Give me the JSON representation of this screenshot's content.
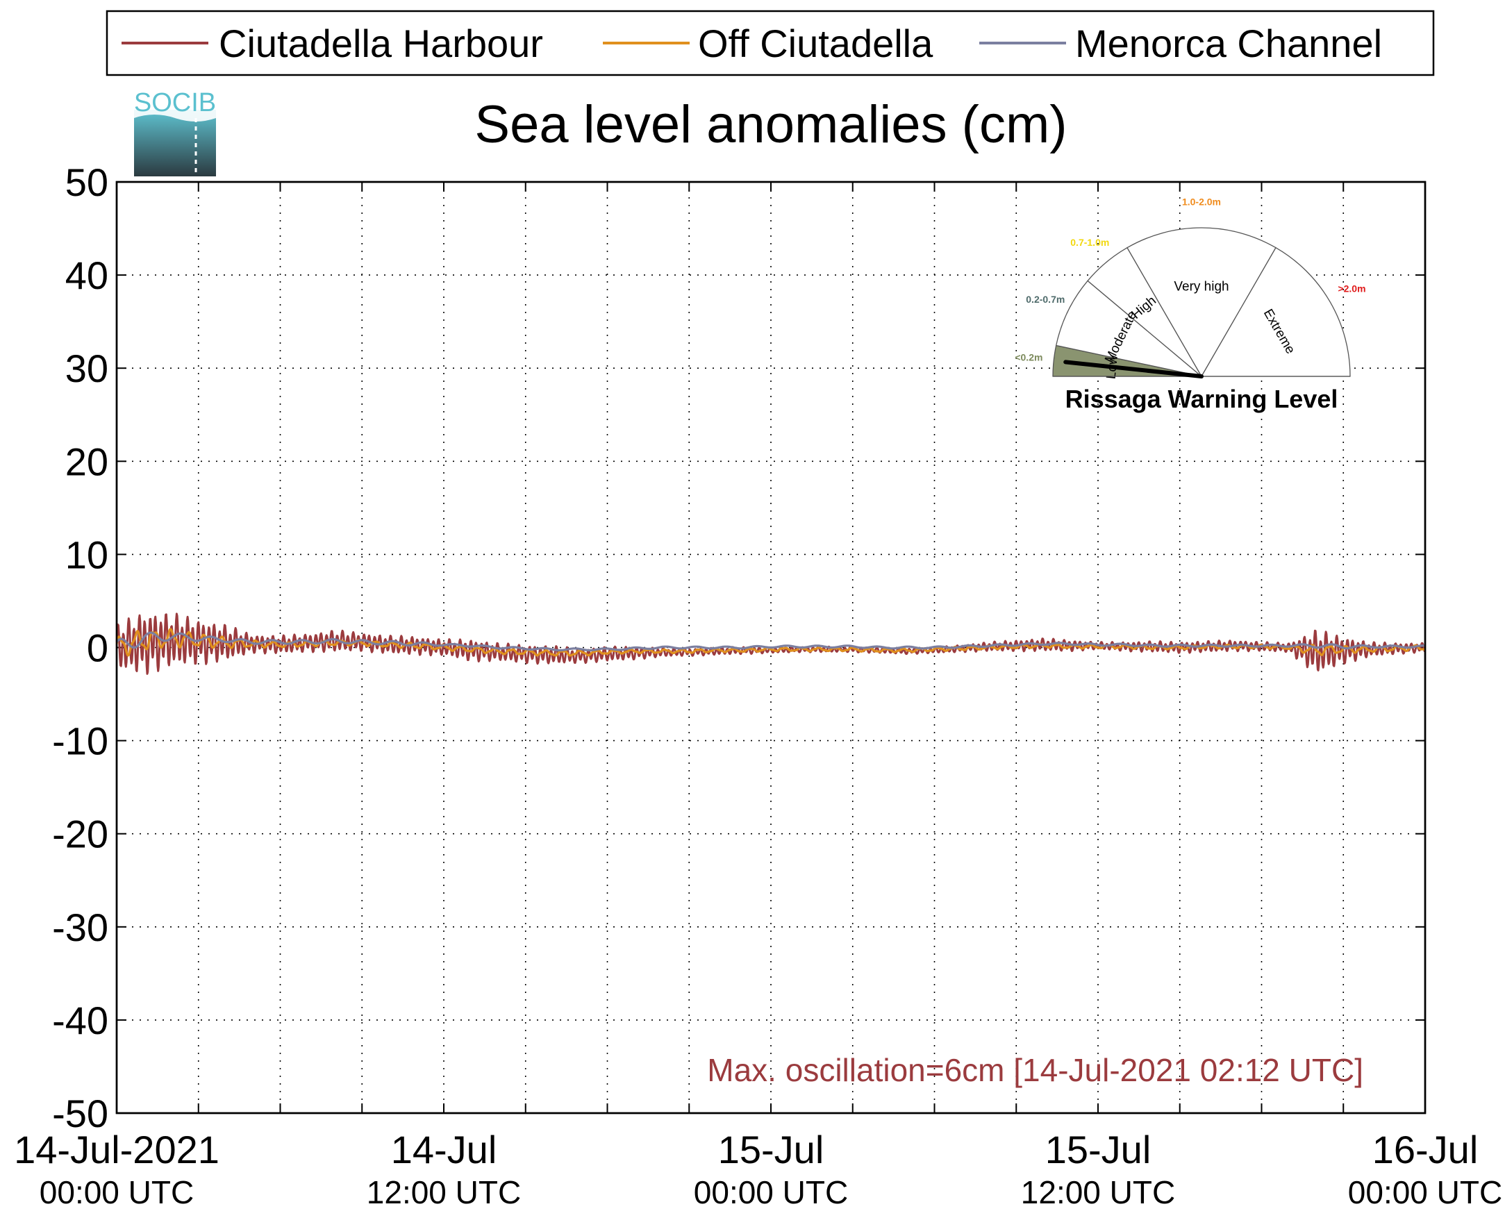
{
  "logo": {
    "text": "SOCIB",
    "color": "#5bc0cf"
  },
  "chart_data": {
    "type": "line",
    "title": "Sea level anomalies (cm)",
    "xlabel": "",
    "ylabel": "",
    "ylim": [
      -50,
      50
    ],
    "yticks": [
      50,
      40,
      30,
      20,
      10,
      0,
      -10,
      -20,
      -30,
      -40,
      -50
    ],
    "xlim_hours": [
      0,
      48
    ],
    "xticks": [
      {
        "hour": 0,
        "date": "14-Jul-2021",
        "time": "00:00 UTC"
      },
      {
        "hour": 12,
        "date": "14-Jul",
        "time": "12:00 UTC"
      },
      {
        "hour": 24,
        "date": "15-Jul",
        "time": "00:00 UTC"
      },
      {
        "hour": 36,
        "date": "15-Jul",
        "time": "12:00 UTC"
      },
      {
        "hour": 48,
        "date": "16-Jul",
        "time": "00:00 UTC"
      }
    ],
    "grid": true,
    "legend_position": "top",
    "series": [
      {
        "name": "Ciutadella Harbour",
        "color": "#9b3b3e",
        "hours": [
          0,
          1,
          2,
          3,
          4,
          5,
          6,
          7,
          8,
          9,
          10,
          11,
          12,
          13,
          14,
          15,
          16,
          17,
          18,
          19,
          20,
          21,
          22,
          23,
          24,
          25,
          26,
          27,
          28,
          29,
          30,
          31,
          32,
          33,
          34,
          35,
          36,
          37,
          38,
          39,
          40,
          41,
          42,
          43,
          44,
          45,
          46,
          47,
          48
        ],
        "envelope_cm": [
          2.5,
          3.5,
          3,
          2.5,
          2,
          1,
          1,
          1,
          1.2,
          1,
          1,
          1,
          0.9,
          1.2,
          1,
          1,
          1,
          0.8,
          0.8,
          0.7,
          0.5,
          0.4,
          0.4,
          0.4,
          0.3,
          0.3,
          0.3,
          0.3,
          0.3,
          0.3,
          0.3,
          0.4,
          0.5,
          0.6,
          0.7,
          0.6,
          0.4,
          0.5,
          0.6,
          0.6,
          0.6,
          0.6,
          0.5,
          0.5,
          2.5,
          1.5,
          0.8,
          0.6,
          0.5
        ],
        "mean_cm": [
          0,
          0.5,
          0.8,
          0.6,
          0.5,
          0.4,
          0.3,
          0.5,
          0.7,
          0.6,
          0.3,
          0.2,
          0,
          -0.3,
          -0.5,
          -0.7,
          -0.8,
          -0.9,
          -0.7,
          -0.6,
          -0.5,
          -0.5,
          -0.4,
          -0.3,
          -0.3,
          -0.2,
          -0.2,
          -0.2,
          -0.3,
          -0.4,
          -0.3,
          -0.1,
          0.1,
          0.2,
          0.3,
          0.2,
          0.2,
          0.1,
          0.1,
          0,
          0.1,
          0.2,
          0.1,
          0,
          -0.5,
          -0.3,
          -0.2,
          -0.1,
          0
        ]
      },
      {
        "name": "Off Ciutadella",
        "color": "#e0901e",
        "hours": [
          0,
          1,
          2,
          3,
          4,
          5,
          6,
          7,
          8,
          9,
          10,
          11,
          12,
          13,
          14,
          15,
          16,
          17,
          18,
          19,
          20,
          21,
          22,
          23,
          24,
          25,
          26,
          27,
          28,
          29,
          30,
          31,
          32,
          33,
          34,
          35,
          36,
          37,
          38,
          39,
          40,
          41,
          42,
          43,
          44,
          45,
          46,
          47,
          48
        ],
        "envelope_cm": [
          1.2,
          1.2,
          1,
          0.8,
          0.6,
          0.4,
          0.3,
          0.3,
          0.3,
          0.3,
          0.3,
          0.3,
          0.3,
          0.3,
          0.3,
          0.3,
          0.3,
          0.3,
          0.2,
          0.2,
          0.2,
          0.2,
          0.2,
          0.2,
          0.2,
          0.2,
          0.2,
          0.2,
          0.2,
          0.2,
          0.2,
          0.2,
          0.2,
          0.2,
          0.2,
          0.2,
          0.2,
          0.2,
          0.2,
          0.2,
          0.2,
          0.2,
          0.2,
          0.2,
          0.6,
          0.4,
          0.3,
          0.3,
          0.3
        ],
        "mean_cm": [
          0,
          0.8,
          1,
          0.8,
          0.5,
          0.4,
          0.3,
          0.4,
          0.5,
          0.5,
          0.3,
          0.2,
          0,
          -0.2,
          -0.4,
          -0.5,
          -0.6,
          -0.6,
          -0.5,
          -0.4,
          -0.4,
          -0.4,
          -0.3,
          -0.3,
          -0.2,
          -0.2,
          -0.2,
          -0.2,
          -0.3,
          -0.3,
          -0.2,
          -0.1,
          0,
          0.1,
          0.2,
          0.1,
          0.1,
          0.1,
          0,
          0,
          0.1,
          0.1,
          0.1,
          0,
          -0.3,
          -0.2,
          -0.2,
          -0.1,
          0
        ]
      },
      {
        "name": "Menorca Channel",
        "color": "#7b7fa0",
        "hours": [
          0,
          1,
          2,
          3,
          4,
          5,
          6,
          7,
          8,
          9,
          10,
          11,
          12,
          13,
          14,
          15,
          16,
          17,
          18,
          19,
          20,
          21,
          22,
          23,
          24,
          25,
          26,
          27,
          28,
          29,
          30,
          31,
          32,
          33,
          34,
          35,
          36,
          37,
          38,
          39,
          40,
          41,
          42,
          43,
          44,
          45,
          46,
          47,
          48
        ],
        "envelope_cm": [
          0.8,
          0.6,
          0.4,
          0.3,
          0.2,
          0.2,
          0.2,
          0.2,
          0.2,
          0.2,
          0.2,
          0.2,
          0.1,
          0.1,
          0.1,
          0.1,
          0.1,
          0.1,
          0.1,
          0.1,
          0.1,
          0.1,
          0.1,
          0.1,
          0.1,
          0.1,
          0.1,
          0.1,
          0.1,
          0.1,
          0.1,
          0.1,
          0.1,
          0.1,
          0.1,
          0.1,
          0.1,
          0.1,
          0.1,
          0.1,
          0.1,
          0.1,
          0.1,
          0.1,
          0.2,
          0.2,
          0.1,
          0.1,
          0.1
        ],
        "mean_cm": [
          0,
          1,
          1.2,
          1,
          0.8,
          0.6,
          0.6,
          0.6,
          0.7,
          0.6,
          0.5,
          0.4,
          0.3,
          0.2,
          0,
          -0.1,
          -0.2,
          -0.2,
          -0.2,
          -0.1,
          0,
          0,
          0,
          0,
          0.1,
          0.1,
          0.1,
          0.1,
          0,
          0,
          0,
          0.1,
          0.2,
          0.3,
          0.4,
          0.4,
          0.3,
          0.3,
          0.2,
          0.2,
          0.2,
          0.2,
          0.2,
          0.2,
          0.2,
          0.1,
          0.1,
          0.1,
          0.1
        ]
      }
    ],
    "annotation": {
      "text": "Max. oscillation=6cm [14-Jul-2021 02:12 UTC]",
      "color": "#9b3b3e"
    }
  },
  "gauge": {
    "title": "Rissaga Warning Level",
    "current_level": "Low",
    "segments": [
      {
        "label": "Low",
        "range": "<0.2m",
        "range_color": "#7c8a5c",
        "fill": "#8a9470",
        "start_deg": 180,
        "end_deg": 168
      },
      {
        "label": "Moderate",
        "range": "0.2-0.7m",
        "range_color": "#4f6b6b",
        "fill": "#ffffff",
        "start_deg": 168,
        "end_deg": 140
      },
      {
        "label": "High",
        "range": "0.7-1.0m",
        "range_color": "#f2d80e",
        "fill": "#ffffff",
        "start_deg": 140,
        "end_deg": 120
      },
      {
        "label": "Very high",
        "range": "1.0-2.0m",
        "range_color": "#f08c1e",
        "fill": "#ffffff",
        "start_deg": 120,
        "end_deg": 60
      },
      {
        "label": "Extreme",
        "range": ">2.0m",
        "range_color": "#e01b1b",
        "fill": "#ffffff",
        "start_deg": 60,
        "end_deg": 0
      }
    ]
  }
}
